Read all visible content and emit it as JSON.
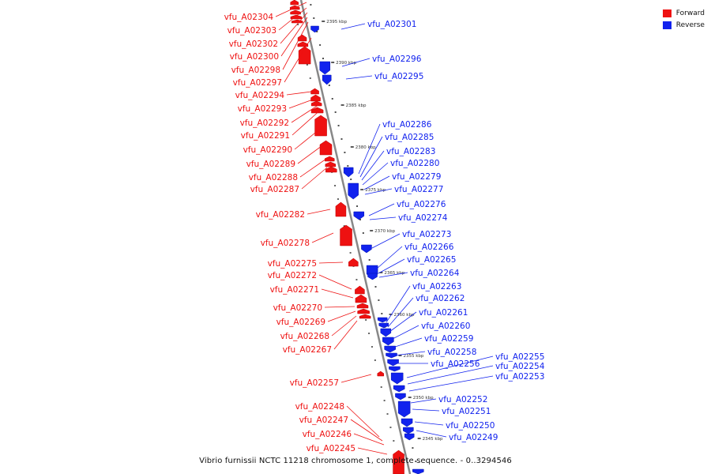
{
  "caption": "Vibrio furnissii NCTC 11218 chromosome 1, complete sequence. - 0..3294546",
  "legend": [
    {
      "label": "Forward",
      "color": "#ee1111"
    },
    {
      "label": "Reverse",
      "color": "#1122ee"
    }
  ],
  "colors": {
    "forward": "#ee1111",
    "reverse": "#1122ee",
    "backbone": "#888888"
  },
  "ticks": [
    "2395 kbp",
    "2390 kbp",
    "2385 kbp",
    "2380 kbp",
    "2375 kbp",
    "2370 kbp",
    "2365 kbp",
    "2360 kbp",
    "2355 kbp",
    "2350 kbp",
    "2345 kbp"
  ],
  "forward_labels": [
    "vfu_A02304",
    "vfu_A02303",
    "vfu_A02302",
    "vfu_A02300",
    "vfu_A02298",
    "vfu_A02297",
    "vfu_A02294",
    "vfu_A02293",
    "vfu_A02292",
    "vfu_A02291",
    "vfu_A02290",
    "vfu_A02289",
    "vfu_A02288",
    "vfu_A02287",
    "vfu_A02282",
    "vfu_A02278",
    "vfu_A02275",
    "vfu_A02272",
    "vfu_A02271",
    "vfu_A02270",
    "vfu_A02269",
    "vfu_A02268",
    "vfu_A02267",
    "vfu_A02257",
    "vfu_A02248",
    "vfu_A02247",
    "vfu_A02246",
    "vfu_A02245"
  ],
  "reverse_labels": [
    "vfu_A02301",
    "vfu_A02296",
    "vfu_A02295",
    "vfu_A02286",
    "vfu_A02285",
    "vfu_A02283",
    "vfu_A02280",
    "vfu_A02279",
    "vfu_A02277",
    "vfu_A02276",
    "vfu_A02274",
    "vfu_A02273",
    "vfu_A02266",
    "vfu_A02265",
    "vfu_A02264",
    "vfu_A02263",
    "vfu_A02262",
    "vfu_A02261",
    "vfu_A02260",
    "vfu_A02259",
    "vfu_A02258",
    "vfu_A02256",
    "vfu_A02255",
    "vfu_A02254",
    "vfu_A02253",
    "vfu_A02252",
    "vfu_A02251",
    "vfu_A02250",
    "vfu_A02249"
  ]
}
